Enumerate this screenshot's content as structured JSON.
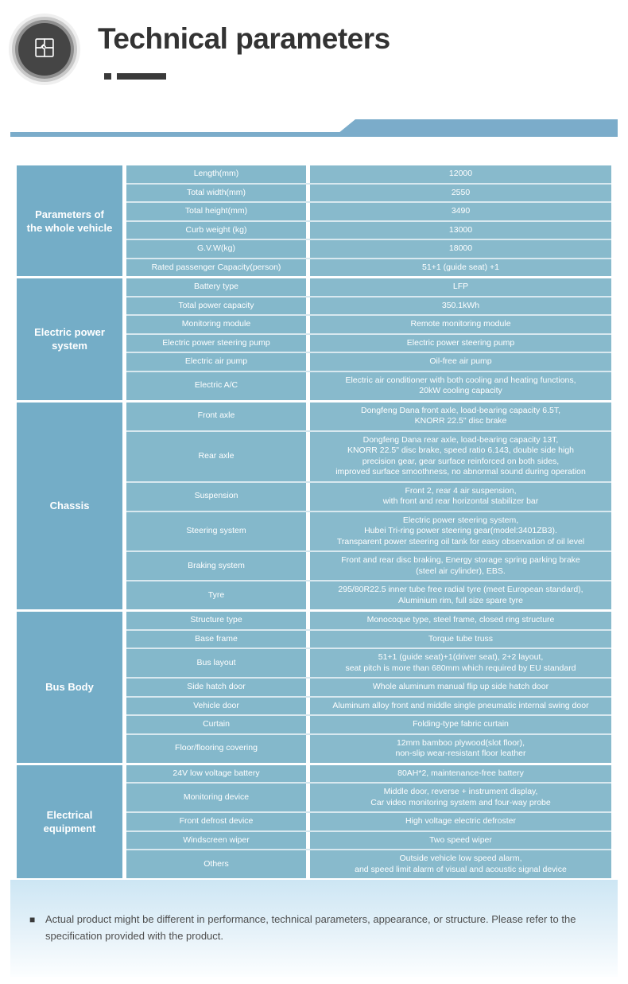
{
  "header": {
    "title": "Technical parameters"
  },
  "colors": {
    "ribbon": "#7bacca",
    "category_bg": "#74adc7",
    "param_bg": "#84b8cb",
    "value_bg": "#88bacc",
    "row_divider": "#d8e8ef",
    "footer_top": "#cde6f4",
    "title_text": "#333333",
    "note_text": "#4e4e4e",
    "icon_bg": "#454545"
  },
  "table": {
    "sections": [
      {
        "category": "Parameters of\nthe whole vehicle",
        "rows": [
          {
            "param": "Length(mm)",
            "value": "12000"
          },
          {
            "param": "Total width(mm)",
            "value": "2550"
          },
          {
            "param": "Total height(mm)",
            "value": "3490"
          },
          {
            "param": "Curb weight (kg)",
            "value": "13000"
          },
          {
            "param": "G.V.W(kg)",
            "value": "18000"
          },
          {
            "param": "Rated passenger Capacity(person)",
            "value": "51+1 (guide seat) +1"
          }
        ]
      },
      {
        "category": "Electric power\nsystem",
        "rows": [
          {
            "param": "Battery type",
            "value": "LFP"
          },
          {
            "param": "Total power capacity",
            "value": "350.1kWh"
          },
          {
            "param": "Monitoring module",
            "value": "Remote monitoring module"
          },
          {
            "param": "Electric power steering pump",
            "value": "Electric power steering pump"
          },
          {
            "param": "Electric air pump",
            "value": "Oil-free air pump"
          },
          {
            "param": "Electric A/C",
            "value": "Electric air conditioner with both cooling and heating functions,\n20kW cooling capacity"
          }
        ]
      },
      {
        "category": "Chassis",
        "rows": [
          {
            "param": "Front axle",
            "value": "Dongfeng Dana front axle, load-bearing capacity 6.5T,\nKNORR 22.5\" disc brake"
          },
          {
            "param": "Rear axle",
            "value": "Dongfeng Dana rear axle, load-bearing capacity 13T,\nKNORR 22.5\" disc brake, speed ratio 6.143, double side high\nprecision gear, gear surface reinforced on both sides,\nimproved surface smoothness, no abnormal sound during operation"
          },
          {
            "param": "Suspension",
            "value": "Front 2, rear 4 air suspension,\nwith front and rear horizontal stabilizer bar"
          },
          {
            "param": "Steering system",
            "value": "Electric power steering system,\nHubei Tri-ring power steering gear(model:3401ZB3).\nTransparent power steering oil tank for easy observation of oil level"
          },
          {
            "param": "Braking system",
            "value": "Front and rear disc braking, Energy storage spring parking brake\n(steel air cylinder), EBS."
          },
          {
            "param": "Tyre",
            "value": "295/80R22.5 inner tube free radial tyre (meet European standard),\nAluminium rim, full size spare tyre"
          }
        ]
      },
      {
        "category": "Bus Body",
        "rows": [
          {
            "param": "Structure type",
            "value": "Monocoque type, steel frame, closed ring structure"
          },
          {
            "param": "Base frame",
            "value": "Torque tube truss"
          },
          {
            "param": "Bus layout",
            "value": "51+1 (guide seat)+1(driver seat), 2+2 layout,\nseat pitch is more than 680mm which required by EU standard"
          },
          {
            "param": "Side hatch door",
            "value": "Whole aluminum manual flip up side hatch door"
          },
          {
            "param": "Vehicle door",
            "value": "Aluminum alloy front and middle single pneumatic internal swing door"
          },
          {
            "param": "Curtain",
            "value": "Folding-type fabric curtain"
          },
          {
            "param": "Floor/flooring covering",
            "value": "12mm bamboo plywood(slot floor),\nnon-slip wear-resistant floor leather"
          }
        ]
      },
      {
        "category": "Electrical\nequipment",
        "rows": [
          {
            "param": "24V low voltage battery",
            "value": "80AH*2, maintenance-free battery"
          },
          {
            "param": "Monitoring device",
            "value": "Middle door, reverse + instrument display,\nCar video monitoring system and four-way probe"
          },
          {
            "param": "Front defrost device",
            "value": "High voltage electric defroster"
          },
          {
            "param": "Windscreen wiper",
            "value": "Two speed wiper"
          },
          {
            "param": "Others",
            "value": "Outside vehicle low speed alarm,\nand speed limit alarm of visual and acoustic signal device"
          }
        ]
      }
    ]
  },
  "footer": {
    "bullet": "■",
    "note": "Actual product might be different in performance, technical parameters, appearance, or structure. Please refer to the specification provided with the product."
  }
}
